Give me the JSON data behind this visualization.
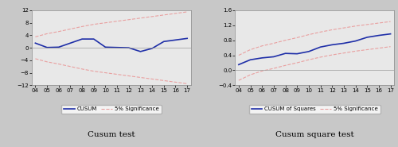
{
  "years": [
    "04",
    "05",
    "06",
    "07",
    "08",
    "09",
    "10",
    "11",
    "12",
    "13",
    "14",
    "15",
    "16",
    "17"
  ],
  "cusum_values": [
    1.5,
    0.1,
    0.2,
    1.5,
    2.8,
    2.8,
    0.2,
    0.1,
    0.0,
    -1.2,
    -0.2,
    2.0,
    2.5,
    3.0
  ],
  "cusum_upper": [
    3.5,
    4.5,
    5.2,
    6.0,
    6.8,
    7.5,
    8.0,
    8.5,
    9.0,
    9.5,
    10.0,
    10.5,
    11.0,
    11.5
  ],
  "cusum_lower": [
    -3.5,
    -4.5,
    -5.2,
    -6.0,
    -6.8,
    -7.5,
    -8.0,
    -8.5,
    -9.0,
    -9.5,
    -10.0,
    -10.5,
    -11.0,
    -11.5
  ],
  "cusum_ylim": [
    -12,
    12
  ],
  "cusum_yticks": [
    -12,
    -8,
    -4,
    0,
    4,
    8,
    12
  ],
  "cusumsq_values": [
    0.15,
    0.28,
    0.33,
    0.36,
    0.45,
    0.44,
    0.5,
    0.62,
    0.68,
    0.72,
    0.78,
    0.88,
    0.93,
    0.97
  ],
  "cusumsq_upper": [
    0.4,
    0.55,
    0.65,
    0.72,
    0.8,
    0.87,
    0.95,
    1.02,
    1.08,
    1.13,
    1.18,
    1.22,
    1.26,
    1.3
  ],
  "cusumsq_lower": [
    -0.27,
    -0.12,
    -0.02,
    0.05,
    0.13,
    0.2,
    0.28,
    0.35,
    0.41,
    0.46,
    0.51,
    0.55,
    0.59,
    0.63
  ],
  "cusumsq_ylim": [
    -0.4,
    1.6
  ],
  "cusumsq_yticks": [
    -0.4,
    0.0,
    0.4,
    0.8,
    1.2,
    1.6
  ],
  "line_color_main": "#1f2fa8",
  "line_color_sig": "#e8a0a0",
  "plot_bg": "#e8e8e8",
  "fig_bg": "#c8c8c8",
  "label1": "Cusum test",
  "label2": "Cusum square test",
  "legend1_line": "CUSUM",
  "legend1_sig": "5% Significance",
  "legend2_line": "CUSUM of Squares",
  "legend2_sig": "5% Significance"
}
